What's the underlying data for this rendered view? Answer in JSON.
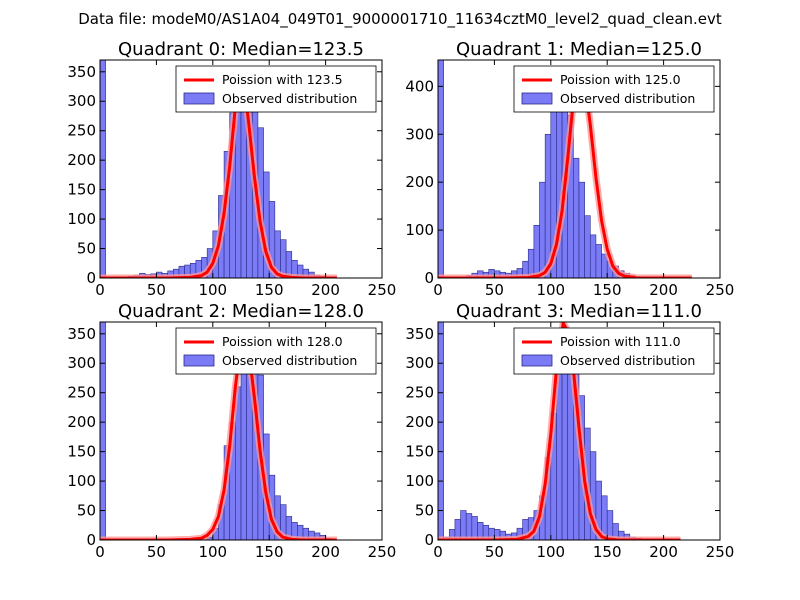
{
  "suptitle": "Data file: modeM0/AS1A04_049T01_9000001710_11634cztM0_level2_quad_clean.evt",
  "colors": {
    "hist_fill": "#7b7bf5",
    "hist_edge": "#2a2a8a",
    "poisson_line": "#ff0000",
    "poisson_glow": "#ff9999",
    "axes": "#000000"
  },
  "chart_data": [
    {
      "type": "bar",
      "title": "Quadrant 0: Median=123.5",
      "xlim": [
        0,
        250
      ],
      "ylim": [
        0,
        370
      ],
      "xticks": [
        0,
        50,
        100,
        150,
        200,
        250
      ],
      "yticks": [
        0,
        50,
        100,
        150,
        200,
        250,
        300,
        350
      ],
      "legend_position": "top-right",
      "series": [
        {
          "name": "Poission with 123.5",
          "kind": "line",
          "x": [
            0,
            60,
            80,
            90,
            95,
            100,
            105,
            110,
            115,
            120,
            123.5,
            127,
            132,
            137,
            142,
            147,
            152,
            157,
            162,
            170,
            180,
            200,
            210
          ],
          "y": [
            0,
            0,
            1,
            4,
            10,
            25,
            55,
            110,
            190,
            290,
            350,
            340,
            260,
            170,
            95,
            45,
            18,
            7,
            3,
            1,
            0,
            0,
            0
          ]
        },
        {
          "name": "Observed distribution",
          "kind": "hist",
          "bin_start": 0,
          "bin_width": 5,
          "values": [
            370,
            0,
            0,
            0,
            0,
            3,
            5,
            8,
            6,
            7,
            10,
            8,
            12,
            15,
            20,
            22,
            25,
            30,
            35,
            50,
            80,
            140,
            215,
            280,
            330,
            355,
            345,
            310,
            255,
            180,
            130,
            80,
            65,
            45,
            30,
            22,
            15,
            10,
            5,
            3,
            2,
            0
          ]
        }
      ]
    },
    {
      "type": "bar",
      "title": "Quadrant 1: Median=125.0",
      "xlim": [
        0,
        250
      ],
      "ylim": [
        0,
        455
      ],
      "xticks": [
        0,
        50,
        100,
        150,
        200,
        250
      ],
      "yticks": [
        0,
        100,
        200,
        300,
        400
      ],
      "legend_position": "top-right",
      "series": [
        {
          "name": "Poission with 125.0",
          "kind": "line",
          "x": [
            0,
            60,
            80,
            90,
            95,
            100,
            105,
            110,
            115,
            120,
            125,
            130,
            135,
            140,
            145,
            150,
            155,
            160,
            165,
            175,
            190,
            210,
            225
          ],
          "y": [
            0,
            0,
            1,
            5,
            12,
            30,
            70,
            140,
            250,
            370,
            430,
            410,
            320,
            210,
            120,
            60,
            25,
            10,
            4,
            1,
            0,
            0,
            0
          ]
        },
        {
          "name": "Observed distribution",
          "kind": "hist",
          "bin_start": 0,
          "bin_width": 5,
          "values": [
            455,
            0,
            0,
            0,
            0,
            5,
            10,
            15,
            12,
            18,
            15,
            12,
            10,
            15,
            20,
            35,
            60,
            110,
            200,
            300,
            380,
            425,
            400,
            340,
            250,
            200,
            130,
            90,
            70,
            50,
            35,
            25,
            15,
            10,
            5,
            3
          ]
        }
      ]
    },
    {
      "type": "bar",
      "title": "Quadrant 2: Median=128.0",
      "xlim": [
        0,
        250
      ],
      "ylim": [
        0,
        370
      ],
      "xticks": [
        0,
        50,
        100,
        150,
        200,
        250
      ],
      "yticks": [
        0,
        50,
        100,
        150,
        200,
        250,
        300,
        350
      ],
      "legend_position": "top-right",
      "series": [
        {
          "name": "Poission with 128.0",
          "kind": "line",
          "x": [
            0,
            60,
            80,
            90,
            95,
            100,
            105,
            110,
            115,
            120,
            125,
            128,
            132,
            137,
            142,
            147,
            152,
            157,
            162,
            170,
            180,
            200,
            210
          ],
          "y": [
            0,
            0,
            1,
            3,
            8,
            18,
            40,
            85,
            160,
            260,
            335,
            352,
            320,
            240,
            150,
            80,
            35,
            14,
            5,
            1,
            0,
            0,
            0
          ]
        },
        {
          "name": "Observed distribution",
          "kind": "hist",
          "bin_start": 0,
          "bin_width": 5,
          "values": [
            370,
            0,
            0,
            0,
            0,
            0,
            0,
            0,
            0,
            0,
            0,
            0,
            0,
            0,
            0,
            0,
            0,
            0,
            2,
            5,
            20,
            60,
            160,
            200,
            260,
            320,
            350,
            330,
            280,
            180,
            110,
            75,
            60,
            40,
            30,
            25,
            20,
            15,
            12,
            8,
            3,
            0
          ]
        }
      ]
    },
    {
      "type": "bar",
      "title": "Quadrant 3: Median=111.0",
      "xlim": [
        0,
        250
      ],
      "ylim": [
        0,
        370
      ],
      "xticks": [
        0,
        50,
        100,
        150,
        200,
        250
      ],
      "yticks": [
        0,
        50,
        100,
        150,
        200,
        250,
        300,
        350
      ],
      "legend_position": "top-right",
      "series": [
        {
          "name": "Poission with 111.0",
          "kind": "line",
          "x": [
            0,
            50,
            70,
            80,
            85,
            90,
            95,
            100,
            105,
            111,
            115,
            120,
            125,
            130,
            135,
            140,
            145,
            150,
            160,
            170,
            190,
            210,
            215
          ],
          "y": [
            0,
            0,
            1,
            6,
            15,
            40,
            95,
            180,
            290,
            368,
            355,
            290,
            190,
            100,
            45,
            18,
            6,
            2,
            0,
            0,
            0,
            0,
            0
          ]
        },
        {
          "name": "Observed distribution",
          "kind": "hist",
          "bin_start": 0,
          "bin_width": 5,
          "values": [
            370,
            5,
            18,
            35,
            50,
            45,
            40,
            30,
            25,
            20,
            18,
            15,
            10,
            12,
            20,
            35,
            38,
            50,
            75,
            140,
            215,
            295,
            320,
            345,
            310,
            245,
            190,
            150,
            100,
            75,
            50,
            28,
            15,
            10,
            5,
            3,
            2,
            0
          ]
        }
      ]
    }
  ]
}
